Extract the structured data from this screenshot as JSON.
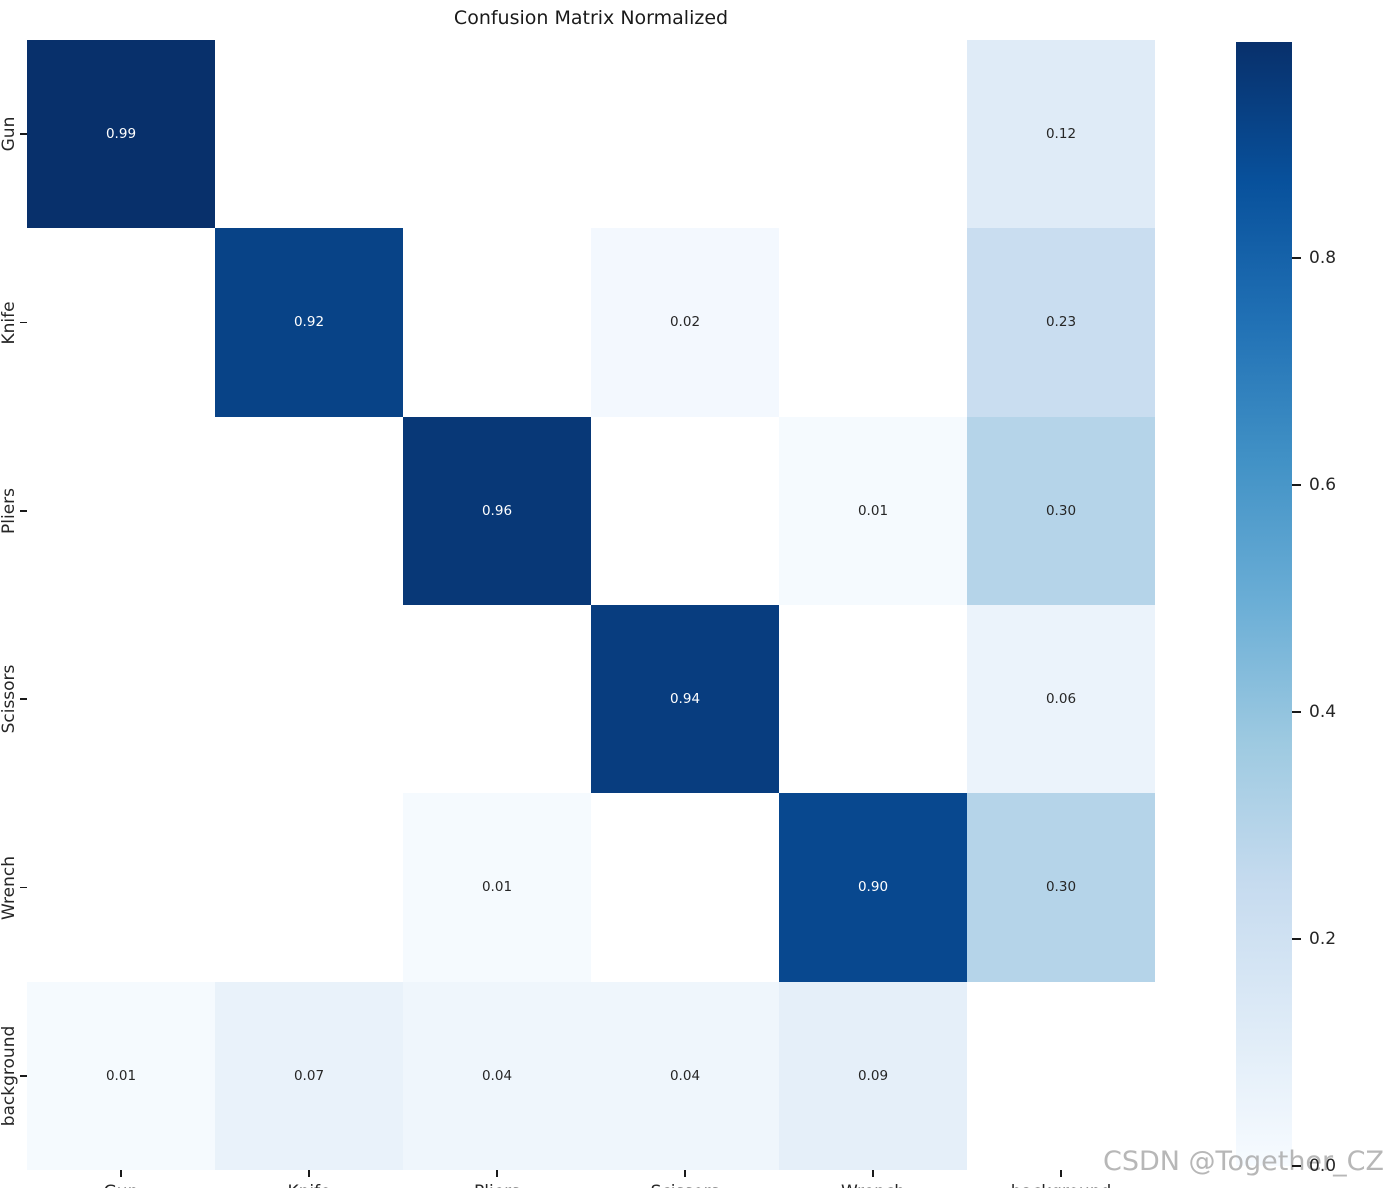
{
  "title": "Confusion Matrix Normalized",
  "watermark": "CSDN @Together_CZ",
  "chart_data": {
    "type": "heatmap",
    "title": "Confusion Matrix Normalized",
    "x_labels": [
      "Gun",
      "Knife",
      "Pliers",
      "Scissors",
      "Wrench",
      "background"
    ],
    "y_labels": [
      "Gun",
      "Knife",
      "Pliers",
      "Scissors",
      "Wrench",
      "background"
    ],
    "matrix": [
      [
        0.99,
        null,
        null,
        null,
        null,
        0.12
      ],
      [
        null,
        0.92,
        null,
        0.02,
        null,
        0.23
      ],
      [
        null,
        null,
        0.96,
        null,
        0.01,
        0.3
      ],
      [
        null,
        null,
        null,
        0.94,
        null,
        0.06
      ],
      [
        null,
        null,
        0.01,
        null,
        0.9,
        0.3
      ],
      [
        0.01,
        0.07,
        0.04,
        0.04,
        0.09,
        null
      ]
    ],
    "annotation_format": "2dp",
    "colormap": "Blues",
    "vmin": 0.0,
    "vmax": 0.99,
    "colorbar_ticks": [
      0.8,
      0.6,
      0.4,
      0.2,
      0.0
    ],
    "colorbar_position": "right",
    "grid": false,
    "colors": {
      "cmap_low": "#f7fbff",
      "cmap_high": "#08306b",
      "annotation_dark": "#262626",
      "annotation_light": "#ffffff",
      "empty_cell": "#ffffff",
      "axis_text": "#262626",
      "watermark": "#a5a5a5"
    }
  }
}
